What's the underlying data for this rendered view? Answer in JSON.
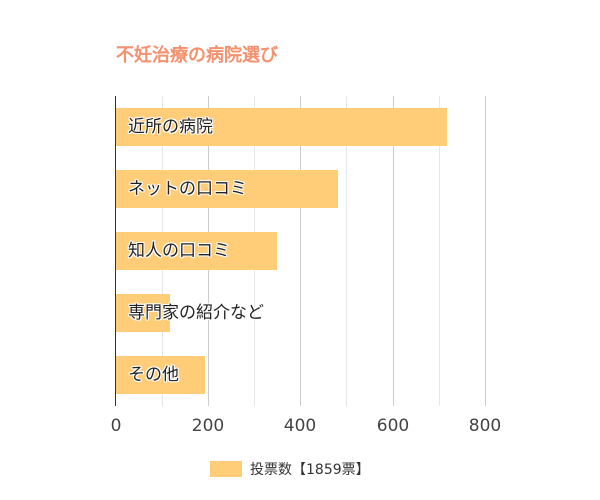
{
  "chart_data": {
    "type": "bar",
    "orientation": "horizontal",
    "title": "不妊治療の病院選び",
    "categories": [
      "近所の病院",
      "ネットの口コミ",
      "知人の口コミ",
      "専門家の紹介など",
      "その他"
    ],
    "series": [
      {
        "name": "投票数【1859票】",
        "values": [
          717,
          482,
          348,
          118,
          194
        ],
        "color": "#ffcc77"
      }
    ],
    "xlabel": "",
    "ylabel": "",
    "xlim": [
      0,
      800
    ],
    "x_ticks": [
      "0",
      "200",
      "400",
      "600",
      "800"
    ],
    "grid": true,
    "legend_position": "bottom"
  },
  "colors": {
    "title": "#f4916f",
    "bar": "#ffcc77"
  }
}
